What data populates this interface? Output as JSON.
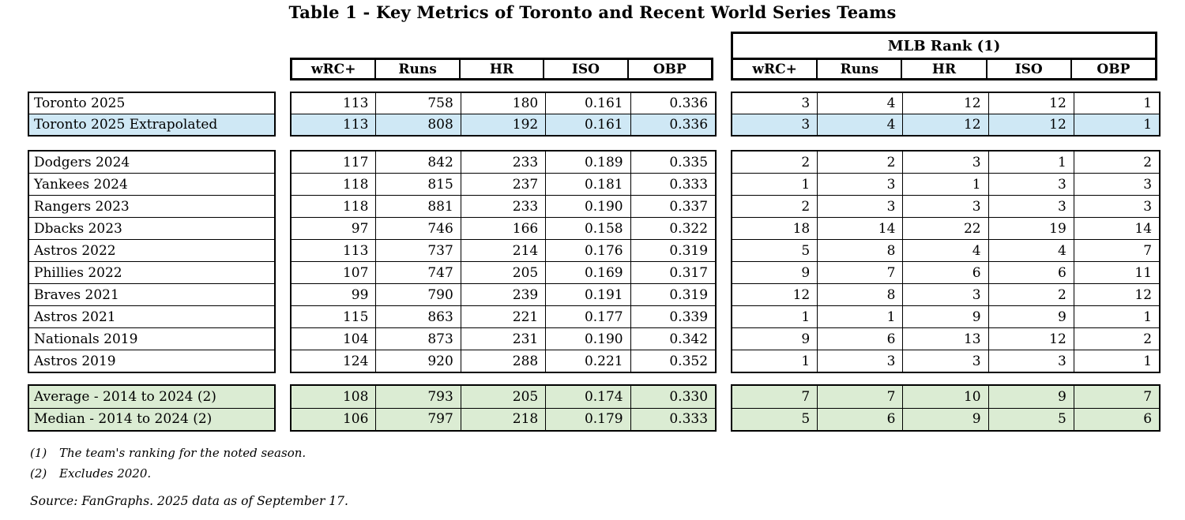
{
  "title": "Table 1 - Key Metrics of Toronto and Recent World Series Teams",
  "headers": {
    "mlb_rank": "MLB Rank (1)",
    "stat_columns": [
      "wRC+",
      "Runs",
      "HR",
      "ISO",
      "OBP"
    ],
    "rank_columns": [
      "wRC+",
      "Runs",
      "HR",
      "ISO",
      "OBP"
    ]
  },
  "colors": {
    "highlight_blue": "#cfe8f5",
    "highlight_green": "#dbecd3",
    "border_black": "#000000"
  },
  "groups": [
    {
      "name": "toronto",
      "rows": [
        {
          "team": "Toronto 2025",
          "highlight": "none",
          "stats": [
            "113",
            "758",
            "180",
            "0.161",
            "0.336"
          ],
          "ranks": [
            "3",
            "4",
            "12",
            "12",
            "1"
          ]
        },
        {
          "team": "Toronto 2025 Extrapolated",
          "highlight": "blue",
          "stats": [
            "113",
            "808",
            "192",
            "0.161",
            "0.336"
          ],
          "ranks": [
            "3",
            "4",
            "12",
            "12",
            "1"
          ]
        }
      ]
    },
    {
      "name": "world-series-teams",
      "rows": [
        {
          "team": "Dodgers 2024",
          "highlight": "none",
          "stats": [
            "117",
            "842",
            "233",
            "0.189",
            "0.335"
          ],
          "ranks": [
            "2",
            "2",
            "3",
            "1",
            "2"
          ]
        },
        {
          "team": "Yankees 2024",
          "highlight": "none",
          "stats": [
            "118",
            "815",
            "237",
            "0.181",
            "0.333"
          ],
          "ranks": [
            "1",
            "3",
            "1",
            "3",
            "3"
          ]
        },
        {
          "team": "Rangers 2023",
          "highlight": "none",
          "stats": [
            "118",
            "881",
            "233",
            "0.190",
            "0.337"
          ],
          "ranks": [
            "2",
            "3",
            "3",
            "3",
            "3"
          ]
        },
        {
          "team": "Dbacks 2023",
          "highlight": "none",
          "stats": [
            "97",
            "746",
            "166",
            "0.158",
            "0.322"
          ],
          "ranks": [
            "18",
            "14",
            "22",
            "19",
            "14"
          ]
        },
        {
          "team": "Astros 2022",
          "highlight": "none",
          "stats": [
            "113",
            "737",
            "214",
            "0.176",
            "0.319"
          ],
          "ranks": [
            "5",
            "8",
            "4",
            "4",
            "7"
          ]
        },
        {
          "team": "Phillies 2022",
          "highlight": "none",
          "stats": [
            "107",
            "747",
            "205",
            "0.169",
            "0.317"
          ],
          "ranks": [
            "9",
            "7",
            "6",
            "6",
            "11"
          ]
        },
        {
          "team": "Braves 2021",
          "highlight": "none",
          "stats": [
            "99",
            "790",
            "239",
            "0.191",
            "0.319"
          ],
          "ranks": [
            "12",
            "8",
            "3",
            "2",
            "12"
          ]
        },
        {
          "team": "Astros 2021",
          "highlight": "none",
          "stats": [
            "115",
            "863",
            "221",
            "0.177",
            "0.339"
          ],
          "ranks": [
            "1",
            "1",
            "9",
            "9",
            "1"
          ]
        },
        {
          "team": "Nationals 2019",
          "highlight": "none",
          "stats": [
            "104",
            "873",
            "231",
            "0.190",
            "0.342"
          ],
          "ranks": [
            "9",
            "6",
            "13",
            "12",
            "2"
          ]
        },
        {
          "team": "Astros 2019",
          "highlight": "none",
          "stats": [
            "124",
            "920",
            "288",
            "0.221",
            "0.352"
          ],
          "ranks": [
            "1",
            "3",
            "3",
            "3",
            "1"
          ]
        }
      ]
    },
    {
      "name": "summary",
      "rows": [
        {
          "team": "Average - 2014 to 2024 (2)",
          "highlight": "green",
          "stats": [
            "108",
            "793",
            "205",
            "0.174",
            "0.330"
          ],
          "ranks": [
            "7",
            "7",
            "10",
            "9",
            "7"
          ]
        },
        {
          "team": "Median - 2014 to 2024 (2)",
          "highlight": "green",
          "stats": [
            "106",
            "797",
            "218",
            "0.179",
            "0.333"
          ],
          "ranks": [
            "5",
            "6",
            "9",
            "5",
            "6"
          ]
        }
      ]
    }
  ],
  "footnotes": [
    {
      "marker": "(1)",
      "text": "The team's ranking for the noted season."
    },
    {
      "marker": "(2)",
      "text": "Excludes 2020."
    }
  ],
  "source": "Source: FanGraphs. 2025 data as of September 17."
}
